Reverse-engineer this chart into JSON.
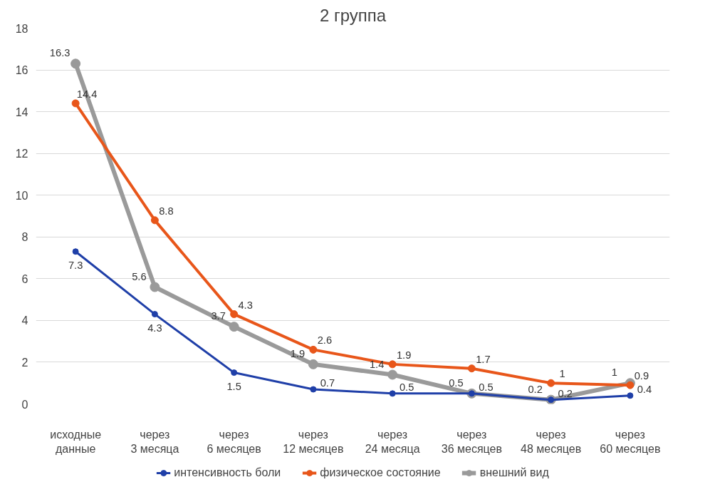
{
  "chart_data": {
    "type": "line",
    "title": "2 группа",
    "categories": [
      "исходные данные",
      "через 3 месяца",
      "через 6 месяцев",
      "через 12 месяцев",
      "через 24 месяца",
      "через 36 месяцев",
      "через 48 месяцев",
      "через 60 месяцев"
    ],
    "series": [
      {
        "name": "интенсивность боли",
        "color": "#1f3fa8",
        "values": [
          7.3,
          4.3,
          1.5,
          0.7,
          0.5,
          0.5,
          0.2,
          0.4
        ]
      },
      {
        "name": "физическое состояние",
        "color": "#e8561a",
        "values": [
          14.4,
          8.8,
          4.3,
          2.6,
          1.9,
          1.7,
          1,
          0.9
        ]
      },
      {
        "name": "внешний вид",
        "color": "#9a9a9a",
        "values": [
          16.3,
          5.6,
          3.7,
          1.9,
          1.4,
          0.5,
          0.2,
          1
        ]
      }
    ],
    "ylim": [
      0,
      18
    ],
    "yticks": [
      0,
      2,
      4,
      6,
      8,
      10,
      12,
      14,
      16,
      18
    ],
    "grid": "y",
    "legend": "bottom",
    "marker": "circle",
    "line_style": "solid",
    "data_labels": true
  }
}
